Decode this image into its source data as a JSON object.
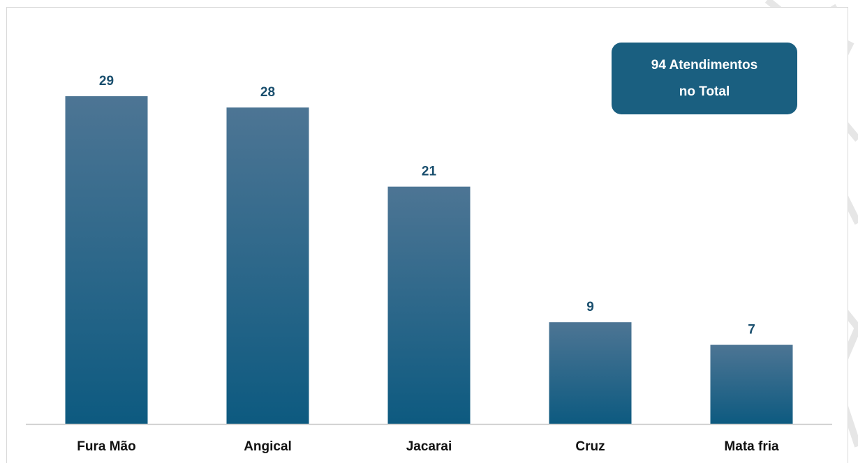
{
  "total_box": {
    "line1": "94 Atendimentos",
    "line2": "no Total"
  },
  "colors": {
    "bar_top": "#4d7594",
    "bar_bottom": "#0d5a80",
    "value_label": "#1a4f6e",
    "category_label": "#111111",
    "axis": "#c8c8c8",
    "box_bg": "#1a5f80"
  },
  "chart_data": {
    "type": "bar",
    "categories": [
      "Fura Mão",
      "Angical",
      "Jacarai",
      "Cruz",
      "Mata fria"
    ],
    "values": [
      29,
      28,
      21,
      9,
      7
    ],
    "data_labels": [
      "29",
      "28",
      "21",
      "9",
      "7"
    ],
    "ylim": [
      0,
      29
    ],
    "grid": false,
    "legend": "none",
    "title": "",
    "xlabel": "",
    "ylabel": ""
  }
}
